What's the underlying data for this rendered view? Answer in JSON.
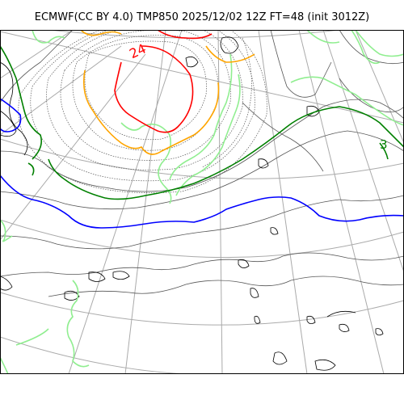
{
  "title": "ECMWF(CC BY 4.0) TMP850 2025/12/02 12Z FT=48 (init 3012Z)",
  "contour_labels": [
    {
      "text": "24",
      "color": "#ff0000"
    },
    {
      "text": "3",
      "color": "#008000"
    }
  ],
  "colors": {
    "frame": "#000000",
    "graticule": "#aaaaaa",
    "coastline": "#000000",
    "isotherm_warm": "#ff0000",
    "isotherm_orange": "#ffa500",
    "isotherm_lightgreen": "#90ee90",
    "isotherm_green": "#008000",
    "isotherm_zero": "#0000ff"
  }
}
